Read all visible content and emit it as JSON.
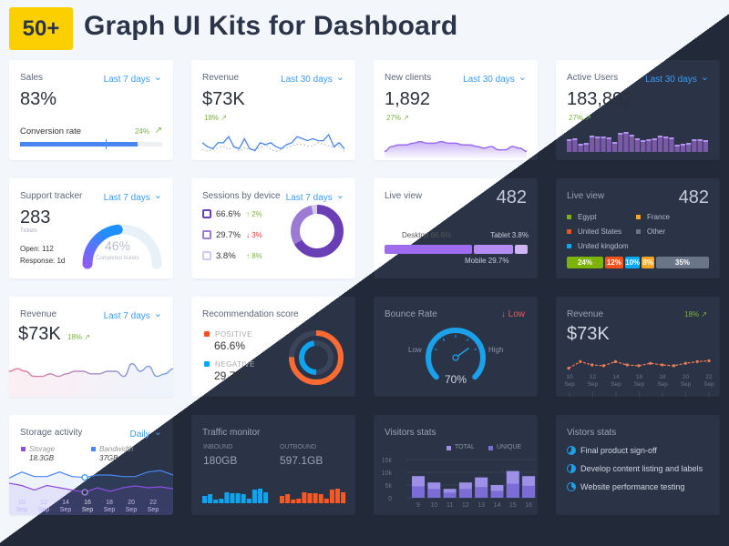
{
  "header": {
    "badge": "50+",
    "title": "Graph UI Kits for Dashboard"
  },
  "colors": {
    "accent": "#3d9bf2",
    "green": "#7cb342",
    "purple": "#7b57c9",
    "orange": "#f4511e",
    "blue": "#03a9f4",
    "dark_card": "#2b3447"
  },
  "sales": {
    "title": "Sales",
    "range": "Last 7 days",
    "value": "83%",
    "conv_label": "Conversion rate",
    "conv_change": "24%",
    "progress": 83,
    "target": 60
  },
  "revenue1": {
    "title": "Revenue",
    "range": "Last 30 days",
    "value": "$73K",
    "change": "18%",
    "series": [
      6,
      4,
      3,
      6,
      6,
      9,
      4,
      3,
      8,
      3,
      2,
      6,
      5,
      6,
      4,
      3,
      5,
      6,
      9,
      8,
      7,
      8,
      7,
      7,
      10,
      4,
      6,
      3
    ],
    "series2": [
      3,
      2,
      3,
      4,
      5,
      3,
      5,
      2,
      4,
      3,
      3,
      4,
      6,
      3,
      2,
      3,
      4,
      5,
      6,
      6,
      5,
      5,
      7,
      6,
      5,
      4,
      5,
      2
    ]
  },
  "new_clients": {
    "title": "New clients",
    "range": "Last 30 days",
    "value": "1,892",
    "change": "27%",
    "series": [
      2,
      5,
      6,
      6,
      7,
      8,
      7,
      7,
      8,
      7,
      7,
      6,
      6,
      5,
      4,
      5,
      3,
      3,
      5,
      4,
      2
    ]
  },
  "active_users": {
    "title": "Active Users",
    "range": "Last 30 days",
    "value": "183,892",
    "change": "27%",
    "bars": [
      14,
      15,
      9,
      10,
      18,
      17,
      17,
      16,
      11,
      21,
      22,
      19,
      15,
      13,
      14,
      15,
      18,
      17,
      16,
      8,
      9,
      10,
      14,
      14,
      13
    ]
  },
  "support": {
    "title": "Support tracker",
    "range": "Last 7 days",
    "value": "283",
    "unit": "Tickets",
    "open": "Open: 112",
    "response": "Response: 1d",
    "completed": 46,
    "completed_label": "46%",
    "completed_caption": "Completed tickets"
  },
  "sessions": {
    "title": "Sessions by device",
    "range": "Last 7 days",
    "devices": [
      {
        "icon": "desktop-icon",
        "pct": "66.6%",
        "change": "2%",
        "dir": "up",
        "value": 66.6,
        "color": "#6a3fb5"
      },
      {
        "icon": "tablet-icon",
        "pct": "29.7%",
        "change": "3%",
        "dir": "down",
        "value": 29.7,
        "color": "#9b7bd4"
      },
      {
        "icon": "mobile-icon",
        "pct": "3.8%",
        "change": "8%",
        "dir": "up",
        "value": 3.8,
        "color": "#d5c8ee"
      }
    ]
  },
  "live1": {
    "title": "Live view",
    "value": "482",
    "segments": [
      {
        "label": "Desktop 66.6%",
        "value": 66.6
      },
      {
        "label": "Mobile 29.7%",
        "value": 29.7
      },
      {
        "label": "Tablet 3.8%",
        "value": 3.8
      }
    ]
  },
  "live2": {
    "title": "Live view",
    "value": "482",
    "legend": [
      {
        "label": "Egypt",
        "color": "#7cb305"
      },
      {
        "label": "France",
        "color": "#f5a623"
      },
      {
        "label": "United States",
        "color": "#f4511e"
      },
      {
        "label": "Other",
        "color": "#6b7588"
      },
      {
        "label": "United kingdom",
        "color": "#03a9f4"
      }
    ],
    "bar": [
      {
        "label": "24%",
        "value": 24,
        "color": "#7cb305"
      },
      {
        "label": "12%",
        "value": 12,
        "color": "#f4511e"
      },
      {
        "label": "10%",
        "value": 10,
        "color": "#03a9f4"
      },
      {
        "label": "8%",
        "value": 8,
        "color": "#f5a623"
      },
      {
        "label": "35%",
        "value": 35,
        "color": "#6b7588"
      }
    ]
  },
  "revenue2": {
    "title": "Revenue",
    "range": "Last 7 days",
    "value": "$73K",
    "change": "18%",
    "series": [
      5,
      6,
      5,
      3,
      3,
      4,
      3,
      4,
      5,
      5,
      4,
      4,
      5,
      5,
      3,
      8,
      5,
      7,
      3,
      4,
      6
    ]
  },
  "recommendation": {
    "title": "Recommendation score",
    "positive_label": "POSITIVE",
    "positive": "66.6%",
    "positive_value": 66.6,
    "negative_label": "NEGATIVE",
    "negative": "29.7%",
    "negative_value": 29.7
  },
  "bounce": {
    "title": "Bounce Rate",
    "status": "Low",
    "low": "Low",
    "high": "High",
    "value": "70%",
    "level": 70
  },
  "revenue3": {
    "title": "Revenue",
    "change": "18%",
    "value": "$73K",
    "series": [
      3,
      7,
      5,
      4.5,
      7,
      5,
      4.5,
      6,
      5,
      4.5,
      6,
      7,
      7.5
    ],
    "xlabels": [
      [
        "10",
        "Sep"
      ],
      [
        "12",
        "Sep"
      ],
      [
        "14",
        "Sep"
      ],
      [
        "16",
        "Sep"
      ],
      [
        "18",
        "Sep"
      ],
      [
        "20",
        "Sep"
      ],
      [
        "22",
        "Sep"
      ]
    ]
  },
  "storage": {
    "title": "Storage activity",
    "range": "Daily",
    "storage_label": "Storage",
    "storage_value": "18.3GB",
    "bandwidth_label": "Bandwidth",
    "bandwidth_value": "37GB",
    "bandwidth": [
      6,
      8,
      6.5,
      6.5,
      8,
      6.5,
      6.2,
      7,
      7,
      6.5,
      6.5,
      8,
      8.5,
      7
    ],
    "storage_series": [
      3,
      2.5,
      1.5,
      2.5,
      2,
      1.5,
      1,
      2,
      1.2,
      2,
      2.4,
      2,
      2.2,
      1.8
    ],
    "xlabels": [
      [
        "10",
        "Sep"
      ],
      [
        "12",
        "Sep"
      ],
      [
        "14",
        "Sep"
      ],
      [
        "16",
        "Sep"
      ],
      [
        "18",
        "Sep"
      ],
      [
        "20",
        "Sep"
      ],
      [
        "22",
        "Sep"
      ]
    ]
  },
  "traffic": {
    "title": "Traffic monitor",
    "inbound_label": "INBOUND",
    "inbound": "180GB",
    "outbound_label": "OUTBOUND",
    "outbound": "597.1GB",
    "in_bars": [
      8,
      10,
      4,
      5,
      12,
      11,
      11,
      10,
      5,
      15,
      16,
      12
    ],
    "out_bars": [
      8,
      10,
      4,
      5,
      12,
      11,
      11,
      10,
      5,
      15,
      16,
      12
    ]
  },
  "visitors": {
    "title": "Visitors stats",
    "legend_total": "TOTAL",
    "legend_unique": "UNIQUE",
    "yticks": [
      "15k",
      "10k",
      "5k",
      "0"
    ],
    "x": [
      "9",
      "10",
      "11",
      "12",
      "13",
      "14",
      "15",
      "16"
    ],
    "total": [
      8.5,
      6,
      3.5,
      6,
      8,
      5,
      10.5,
      8.5
    ],
    "unique": [
      4.5,
      3.5,
      2,
      3.5,
      4.2,
      2.7,
      5.5,
      4.7
    ]
  },
  "tasks": {
    "title": "Vistors stats",
    "items": [
      {
        "label": "Final product sign-off",
        "progress": 60
      },
      {
        "label": "Develop content listing and labels",
        "progress": 55
      },
      {
        "label": "Website performance testing",
        "progress": 35
      }
    ]
  }
}
